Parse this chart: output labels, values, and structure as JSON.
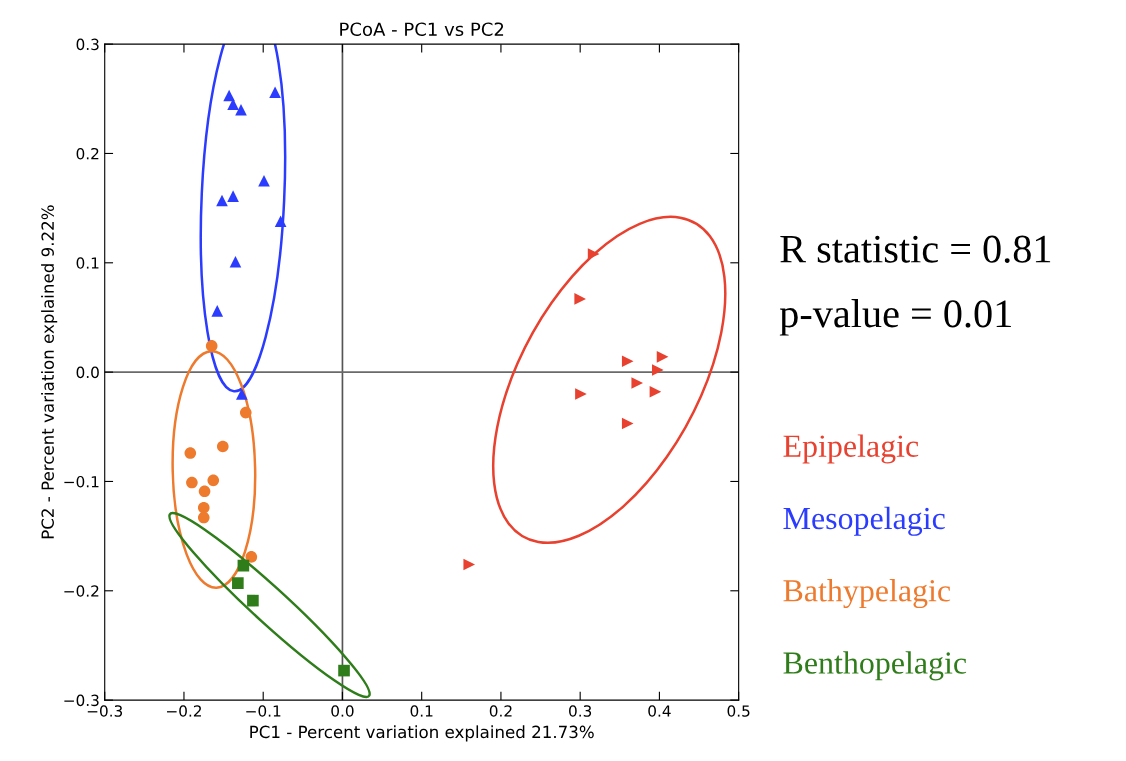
{
  "chart_data": {
    "type": "scatter",
    "title": "PCoA - PC1 vs PC2",
    "xlabel": "PC1 - Percent variation explained 21.73%",
    "ylabel": "PC2 - Percent variation explained 9.22%",
    "xlim": [
      -0.3,
      0.5
    ],
    "ylim": [
      -0.3,
      0.3
    ],
    "xticks": [
      {
        "value": -0.3,
        "label": "−0.3"
      },
      {
        "value": -0.2,
        "label": "−0.2"
      },
      {
        "value": -0.1,
        "label": "−0.1"
      },
      {
        "value": 0,
        "label": "0.0"
      },
      0.1,
      0.2,
      0.3,
      0.4,
      0.5
    ],
    "yticks": [
      {
        "value": -0.3,
        "label": "−0.3"
      },
      {
        "value": -0.2,
        "label": "−0.2"
      },
      {
        "value": -0.1,
        "label": "−0.1"
      },
      {
        "value": 0,
        "label": "0.0"
      },
      0.1,
      0.2,
      0.3
    ],
    "grid": false,
    "legend": "right",
    "ref_lines": [
      {
        "axis": "x",
        "value": 0,
        "color": "#555555"
      },
      {
        "axis": "y",
        "value": 0,
        "color": "#6a6a6a"
      }
    ],
    "annotations": [
      "R statistic = 0.81",
      "p-value = 0.01"
    ],
    "series": [
      {
        "name": "Epipelagic",
        "color": "#e8412f",
        "marker": "triangle-right",
        "x": [
          0.317,
          0.3,
          0.36,
          0.404,
          0.398,
          0.372,
          0.395,
          0.301,
          0.36,
          0.16
        ],
        "values": [
          0.108,
          0.067,
          0.01,
          0.014,
          0.002,
          -0.01,
          -0.018,
          -0.02,
          -0.047,
          -0.176
        ]
      },
      {
        "name": "Mesopelagic",
        "color": "#2b3cff",
        "marker": "triangle",
        "x": [
          -0.143,
          -0.138,
          -0.128,
          -0.085,
          -0.099,
          -0.152,
          -0.138,
          -0.078,
          -0.135,
          -0.158,
          -0.127
        ],
        "values": [
          0.253,
          0.245,
          0.24,
          0.256,
          0.175,
          0.157,
          0.161,
          0.138,
          0.101,
          0.056,
          -0.02
        ]
      },
      {
        "name": "Bathypelagic",
        "color": "#ee7a2e",
        "marker": "circle",
        "x": [
          -0.165,
          -0.122,
          -0.192,
          -0.151,
          -0.19,
          -0.174,
          -0.163,
          -0.175,
          -0.175,
          -0.115
        ],
        "values": [
          0.024,
          -0.037,
          -0.074,
          -0.068,
          -0.101,
          -0.109,
          -0.099,
          -0.124,
          -0.133,
          -0.169
        ]
      },
      {
        "name": "Benthopelagic",
        "color": "#2e7d1a",
        "marker": "square",
        "x": [
          -0.125,
          -0.132,
          -0.113,
          0.002
        ],
        "values": [
          -0.177,
          -0.193,
          -0.209,
          -0.273
        ]
      }
    ]
  }
}
